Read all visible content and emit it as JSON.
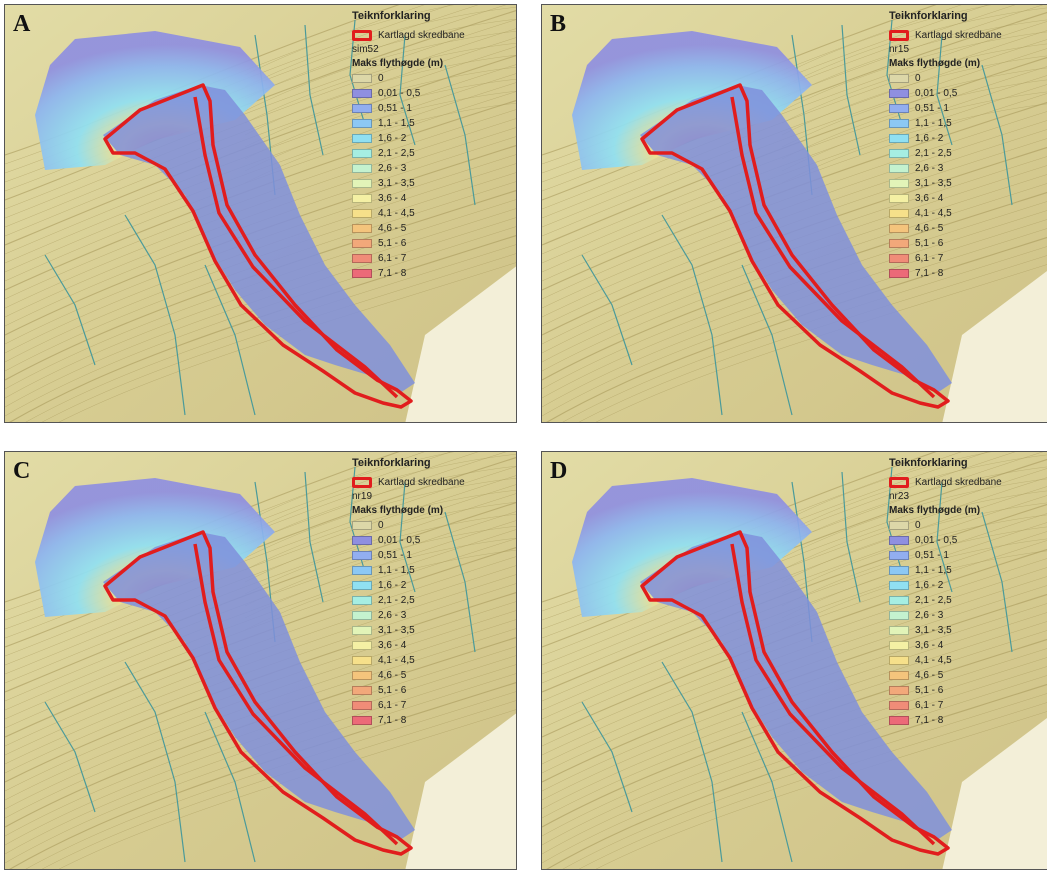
{
  "panels": [
    {
      "letter": "A",
      "sim_label": "sim52",
      "legend_title": "Teiknforklaring",
      "outline_label": "Kartlagd skredbane",
      "depth_title": "Maks flythøgde (m)",
      "intensity": 0.75
    },
    {
      "letter": "B",
      "sim_label": "nr15",
      "legend_title": "Teiknforklaring",
      "outline_label": "Kartlagd skredbane",
      "depth_title": "Maks flythøgde (m)",
      "intensity": 0.9
    },
    {
      "letter": "C",
      "sim_label": "nr19",
      "legend_title": "Teiknforklaring",
      "outline_label": "Kartlagd skredbane",
      "depth_title": "Maks flythøgde (m)",
      "intensity": 0.7
    },
    {
      "letter": "D",
      "sim_label": "nr23",
      "legend_title": "Teiknforklaring",
      "outline_label": "Kartlagd skredbane",
      "depth_title": "Maks flythøgde (m)",
      "intensity": 1.0
    }
  ],
  "legend_classes": [
    {
      "label": "0",
      "color": "#dcd7a8"
    },
    {
      "label": "0,01 - 0,5",
      "color": "#8f8fe0"
    },
    {
      "label": "0,51 - 1",
      "color": "#92aef0"
    },
    {
      "label": "1,1 - 1,5",
      "color": "#8cc8f4"
    },
    {
      "label": "1,6 - 2",
      "color": "#90e0f2"
    },
    {
      "label": "2,1 - 2,5",
      "color": "#a6eee2"
    },
    {
      "label": "2,6 - 3",
      "color": "#c4f2cf"
    },
    {
      "label": "3,1 - 3,5",
      "color": "#e2f4b8"
    },
    {
      "label": "3,6 - 4",
      "color": "#f4f0a4"
    },
    {
      "label": "4,1 - 4,5",
      "color": "#f6e08a"
    },
    {
      "label": "4,6 - 5",
      "color": "#f4c47c"
    },
    {
      "label": "5,1 - 6",
      "color": "#f2a87a"
    },
    {
      "label": "6,1 - 7",
      "color": "#f08c78"
    },
    {
      "label": "7,1 - 8",
      "color": "#ec6a78"
    }
  ],
  "colors": {
    "outline": "#e11d1d",
    "terrain": "#dcd59a",
    "contour": "#a89a5c",
    "stream": "#4a9a9a",
    "flow": "#7f8fdc"
  }
}
